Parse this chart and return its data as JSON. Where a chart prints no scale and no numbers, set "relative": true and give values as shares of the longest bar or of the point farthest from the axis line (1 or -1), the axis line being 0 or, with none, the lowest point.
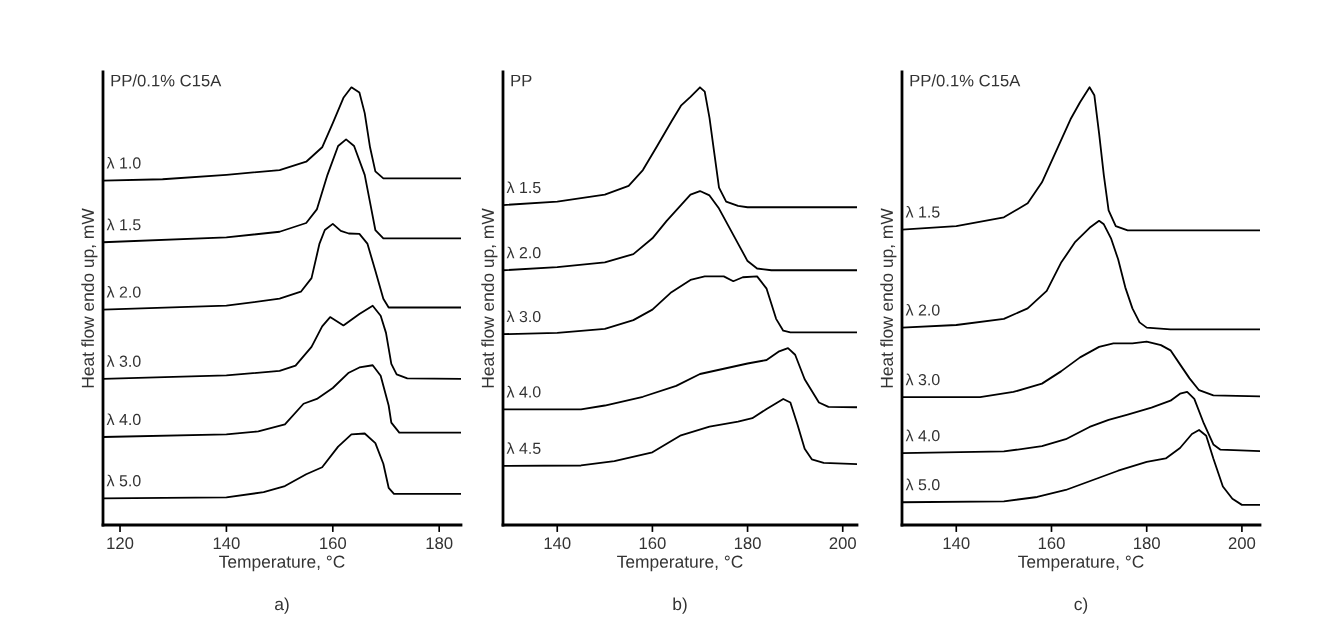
{
  "chart_data": [
    {
      "type": "line",
      "relative": true,
      "title": "a)",
      "xlabel": "Temperature, °C",
      "ylabel": "Heat flow endo up, mW",
      "annotations": [
        "PP/0.1% C15A"
      ],
      "xlim": [
        116.8,
        184.1
      ],
      "xticks": [
        120,
        140,
        160,
        180
      ],
      "grid": false,
      "legend": false,
      "series": [
        {
          "name": "λ 1.0",
          "color": "#000000",
          "x": [
            116.8,
            128,
            140,
            150,
            155,
            158,
            160,
            162,
            163.5,
            165,
            166,
            167,
            168,
            169.5,
            184
          ],
          "values": [
            0.787,
            0.79,
            0.8,
            0.811,
            0.83,
            0.863,
            0.918,
            0.976,
            1.0,
            0.988,
            0.941,
            0.863,
            0.808,
            0.792,
            0.792
          ]
        },
        {
          "name": "λ 1.5",
          "color": "#000000",
          "x": [
            116.8,
            140,
            150,
            155,
            157,
            159,
            161,
            162.5,
            164,
            166,
            167,
            168,
            169.5,
            184
          ],
          "values": [
            0.646,
            0.657,
            0.67,
            0.69,
            0.721,
            0.8,
            0.866,
            0.881,
            0.866,
            0.8,
            0.737,
            0.674,
            0.655,
            0.655
          ]
        },
        {
          "name": "λ 2.0",
          "color": "#000000",
          "x": [
            116.8,
            140,
            150,
            154,
            156,
            157.5,
            158.5,
            160,
            161.5,
            163,
            165,
            166.5,
            168,
            169.5,
            170.5,
            184
          ],
          "values": [
            0.492,
            0.501,
            0.517,
            0.533,
            0.564,
            0.643,
            0.674,
            0.688,
            0.672,
            0.666,
            0.665,
            0.643,
            0.581,
            0.517,
            0.497,
            0.497
          ]
        },
        {
          "name": "λ 3.0",
          "color": "#000000",
          "x": [
            116.8,
            140,
            150,
            153,
            156,
            158,
            159.5,
            162,
            165,
            167.5,
            169,
            170,
            171,
            172,
            174,
            184
          ],
          "values": [
            0.334,
            0.342,
            0.352,
            0.364,
            0.407,
            0.454,
            0.475,
            0.456,
            0.482,
            0.501,
            0.478,
            0.439,
            0.368,
            0.344,
            0.335,
            0.334
          ]
        },
        {
          "name": "λ 4.0",
          "color": "#000000",
          "x": [
            116.8,
            140,
            146,
            151,
            154.5,
            157,
            160,
            163,
            165,
            167.5,
            169,
            170.5,
            171,
            172.5,
            184
          ],
          "values": [
            0.201,
            0.207,
            0.214,
            0.23,
            0.277,
            0.288,
            0.313,
            0.348,
            0.36,
            0.365,
            0.341,
            0.273,
            0.234,
            0.211,
            0.211
          ]
        },
        {
          "name": "λ 5.0",
          "color": "#000000",
          "x": [
            116.8,
            140,
            147,
            151,
            155,
            158,
            161,
            163.5,
            166,
            168,
            169.5,
            170.5,
            171.5,
            184
          ],
          "values": [
            0.061,
            0.063,
            0.075,
            0.089,
            0.116,
            0.132,
            0.179,
            0.207,
            0.209,
            0.187,
            0.14,
            0.085,
            0.071,
            0.071
          ]
        }
      ]
    },
    {
      "type": "line",
      "relative": true,
      "title": "b)",
      "xlabel": "Temperature, °C",
      "ylabel": "Heat flow endo up, mW",
      "annotations": [
        "PP"
      ],
      "xlim": [
        128.6,
        203
      ],
      "xticks": [
        140,
        160,
        180,
        200
      ],
      "grid": false,
      "legend": false,
      "series": [
        {
          "name": "λ 1.5",
          "color": "#000000",
          "x": [
            128.6,
            140,
            150,
            155,
            158,
            161,
            164,
            166,
            168,
            170,
            171,
            172,
            173,
            174,
            175.5,
            178,
            180,
            203
          ],
          "values": [
            0.731,
            0.739,
            0.755,
            0.775,
            0.811,
            0.866,
            0.922,
            0.958,
            0.978,
            1.0,
            0.99,
            0.93,
            0.85,
            0.771,
            0.739,
            0.729,
            0.726,
            0.726
          ]
        },
        {
          "name": "λ 2.0",
          "color": "#000000",
          "x": [
            128.6,
            140,
            150,
            156,
            160,
            163,
            166,
            168,
            170,
            172,
            174,
            176,
            178,
            180,
            182,
            185,
            203
          ],
          "values": [
            0.582,
            0.589,
            0.6,
            0.619,
            0.655,
            0.695,
            0.731,
            0.755,
            0.763,
            0.753,
            0.723,
            0.683,
            0.643,
            0.603,
            0.586,
            0.582,
            0.582
          ]
        },
        {
          "name": "λ 3.0",
          "color": "#000000",
          "x": [
            128.6,
            140,
            150,
            156,
            160,
            164,
            168,
            171,
            175,
            177,
            179,
            182,
            184,
            186,
            187.5,
            189,
            203
          ],
          "values": [
            0.436,
            0.439,
            0.448,
            0.468,
            0.492,
            0.532,
            0.56,
            0.568,
            0.568,
            0.557,
            0.566,
            0.568,
            0.54,
            0.471,
            0.444,
            0.44,
            0.44
          ]
        },
        {
          "name": "λ 4.0",
          "color": "#000000",
          "x": [
            128.6,
            145,
            150,
            158,
            165,
            170,
            175,
            180,
            184,
            186.5,
            188.5,
            190,
            192,
            195,
            197,
            203
          ],
          "values": [
            0.264,
            0.264,
            0.273,
            0.293,
            0.318,
            0.345,
            0.357,
            0.369,
            0.377,
            0.396,
            0.404,
            0.389,
            0.333,
            0.28,
            0.27,
            0.269
          ]
        },
        {
          "name": "λ 4.5",
          "color": "#000000",
          "x": [
            128.6,
            145,
            152,
            160,
            166,
            172,
            178,
            181,
            184,
            187.5,
            189,
            190.5,
            192,
            193.5,
            196,
            203
          ],
          "values": [
            0.135,
            0.136,
            0.146,
            0.166,
            0.205,
            0.225,
            0.236,
            0.244,
            0.265,
            0.288,
            0.28,
            0.229,
            0.174,
            0.15,
            0.142,
            0.139
          ]
        }
      ]
    },
    {
      "type": "line",
      "relative": true,
      "title": "c)",
      "xlabel": "Temperature, °C",
      "ylabel": "Heat flow endo up, mW",
      "annotations": [
        "PP/0.1% C15A"
      ],
      "xlim": [
        128.6,
        203.8
      ],
      "xticks": [
        140,
        160,
        180,
        200
      ],
      "grid": false,
      "legend": false,
      "series": [
        {
          "name": "λ 1.5",
          "color": "#000000",
          "x": [
            128.6,
            140,
            150,
            155,
            158,
            161,
            164,
            166,
            168,
            169,
            170,
            171,
            172,
            173.5,
            176,
            203.8
          ],
          "values": [
            0.675,
            0.683,
            0.703,
            0.735,
            0.783,
            0.855,
            0.927,
            0.966,
            1.0,
            0.982,
            0.895,
            0.799,
            0.719,
            0.683,
            0.673,
            0.673
          ]
        },
        {
          "name": "λ 2.0",
          "color": "#000000",
          "x": [
            128.6,
            140,
            150,
            155,
            159,
            162,
            165,
            168,
            170,
            171,
            172.5,
            174,
            175.5,
            177,
            178.5,
            180,
            185,
            203.8
          ],
          "values": [
            0.451,
            0.457,
            0.471,
            0.495,
            0.535,
            0.599,
            0.647,
            0.679,
            0.695,
            0.687,
            0.655,
            0.607,
            0.543,
            0.495,
            0.463,
            0.451,
            0.447,
            0.447
          ]
        },
        {
          "name": "λ 3.0",
          "color": "#000000",
          "x": [
            128.6,
            145,
            152,
            158,
            162,
            166,
            170,
            173,
            177,
            180,
            183,
            185,
            187,
            189,
            191,
            194,
            203.8
          ],
          "values": [
            0.292,
            0.292,
            0.304,
            0.323,
            0.351,
            0.383,
            0.407,
            0.415,
            0.415,
            0.419,
            0.411,
            0.399,
            0.367,
            0.335,
            0.308,
            0.296,
            0.294
          ]
        },
        {
          "name": "λ 4.0",
          "color": "#000000",
          "x": [
            128.6,
            150,
            158,
            163,
            168,
            172,
            176,
            181,
            185,
            187,
            188.5,
            190,
            192,
            194,
            195.5,
            203.8
          ],
          "values": [
            0.164,
            0.168,
            0.18,
            0.196,
            0.224,
            0.24,
            0.252,
            0.268,
            0.284,
            0.3,
            0.304,
            0.288,
            0.232,
            0.184,
            0.172,
            0.169
          ]
        },
        {
          "name": "λ 5.0",
          "color": "#000000",
          "x": [
            128.6,
            150,
            157,
            163,
            170,
            174,
            180,
            184,
            187,
            189.5,
            191,
            192.5,
            194,
            196,
            198,
            200,
            203.8
          ],
          "values": [
            0.052,
            0.054,
            0.064,
            0.08,
            0.108,
            0.124,
            0.144,
            0.152,
            0.176,
            0.208,
            0.217,
            0.204,
            0.152,
            0.088,
            0.06,
            0.046,
            0.046
          ]
        }
      ]
    }
  ]
}
